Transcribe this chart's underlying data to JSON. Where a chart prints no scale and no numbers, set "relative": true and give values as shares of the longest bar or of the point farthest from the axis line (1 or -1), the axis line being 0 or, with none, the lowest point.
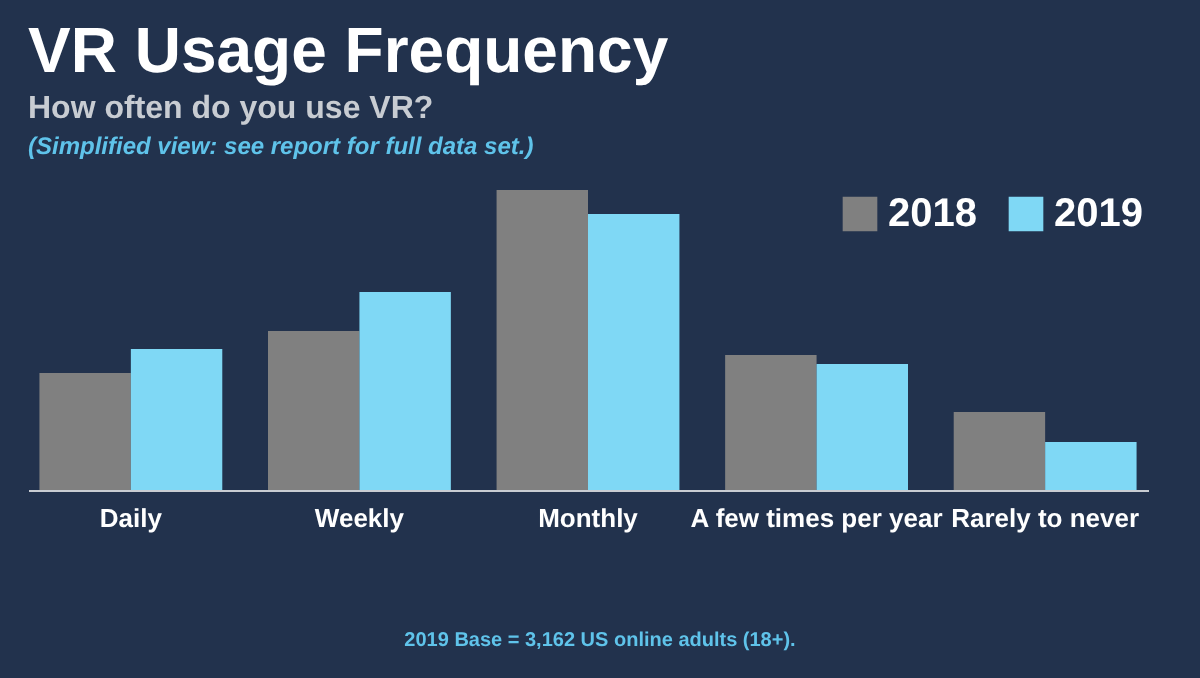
{
  "chart_data": {
    "type": "bar",
    "title": "VR Usage Frequency",
    "subtitle": "How often do you use VR?",
    "annotations": [
      "(Simplified view: see report for full data set.)",
      "2019 Base = 3,162 US online adults (18+)."
    ],
    "categories": [
      "Daily",
      "Weekly",
      "Monthly",
      "A few times per year",
      "Rarely to never"
    ],
    "relative": true,
    "legend": "top right",
    "grid": false,
    "series": [
      {
        "name": "2018",
        "color": "#808080",
        "values": [
          0.39,
          0.53,
          1,
          0.45,
          0.26
        ]
      },
      {
        "name": "2019",
        "color": "#7fd8f5",
        "values": [
          0.47,
          0.66,
          0.92,
          0.42,
          0.16
        ]
      }
    ]
  }
}
